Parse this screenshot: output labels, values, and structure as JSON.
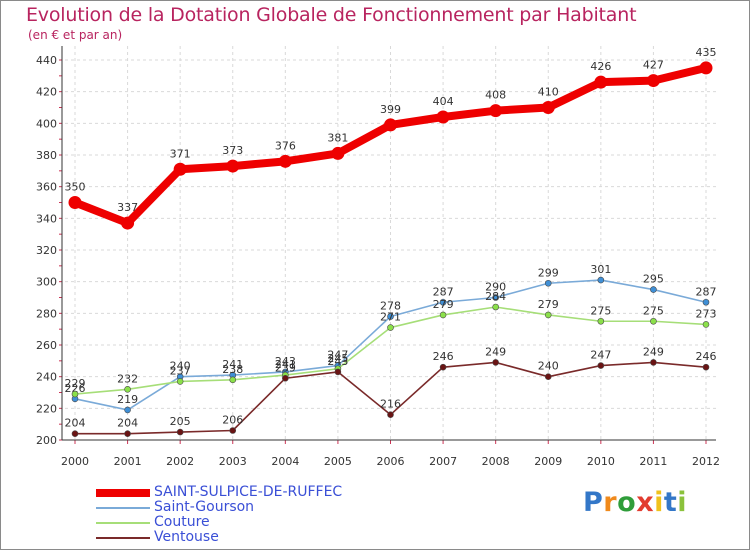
{
  "chart_data": {
    "type": "line",
    "title": "Evolution de la Dotation Globale de Fonctionnement par Habitant",
    "subtitle": "(en € et par an)",
    "x": [
      "2000",
      "2001",
      "2002",
      "2003",
      "2004",
      "2005",
      "2006",
      "2007",
      "2008",
      "2009",
      "2010",
      "2011",
      "2012"
    ],
    "ylim": [
      200,
      440
    ],
    "yticks": [
      200,
      220,
      240,
      260,
      280,
      300,
      320,
      340,
      360,
      380,
      400,
      420,
      440
    ],
    "grid": true,
    "legend_position": "bottom-left",
    "series": [
      {
        "name": "SAINT-SULPICE-DE-RUFFEC",
        "color": "#ee0000",
        "line_color": "#ee0000",
        "thick": true,
        "values": [
          350,
          337,
          371,
          373,
          376,
          381,
          399,
          404,
          408,
          410,
          426,
          427,
          435
        ],
        "labels": [
          "350",
          "337",
          "371",
          "373",
          "376",
          "381",
          "399",
          "404",
          "408",
          "410",
          "426",
          "427",
          "435"
        ]
      },
      {
        "name": "Saint-Gourson",
        "color": "#3f8fd6",
        "line_color": "#7aaad8",
        "thick": false,
        "values": [
          226,
          219,
          240,
          241,
          243,
          247,
          278,
          287,
          290,
          299,
          301,
          295,
          287
        ],
        "labels": [
          "226",
          "219",
          "240",
          "241",
          "243",
          "247",
          "278",
          "287",
          "290",
          "299",
          "301",
          "295",
          "287"
        ]
      },
      {
        "name": "Couture",
        "color": "#8be04a",
        "line_color": "#a6de78",
        "thick": false,
        "values": [
          229,
          232,
          237,
          238,
          241,
          245,
          271,
          279,
          284,
          279,
          275,
          275,
          273
        ],
        "labels": [
          "229",
          "232",
          "237",
          "238",
          "241",
          "245",
          "271",
          "279",
          "284",
          "279",
          "275",
          "275",
          "273"
        ]
      },
      {
        "name": "Ventouse",
        "color": "#6a1414",
        "line_color": "#7a2a2a",
        "thick": false,
        "values": [
          204,
          204,
          205,
          206,
          239,
          243,
          216,
          246,
          249,
          240,
          247,
          249,
          246
        ],
        "labels": [
          "204",
          "204",
          "205",
          "206",
          "239",
          "243",
          "216",
          "246",
          "249",
          "240",
          "247",
          "249",
          "246"
        ]
      }
    ]
  },
  "logo": {
    "letters": [
      "P",
      "r",
      "o",
      "x",
      "i",
      "t",
      "i"
    ]
  }
}
